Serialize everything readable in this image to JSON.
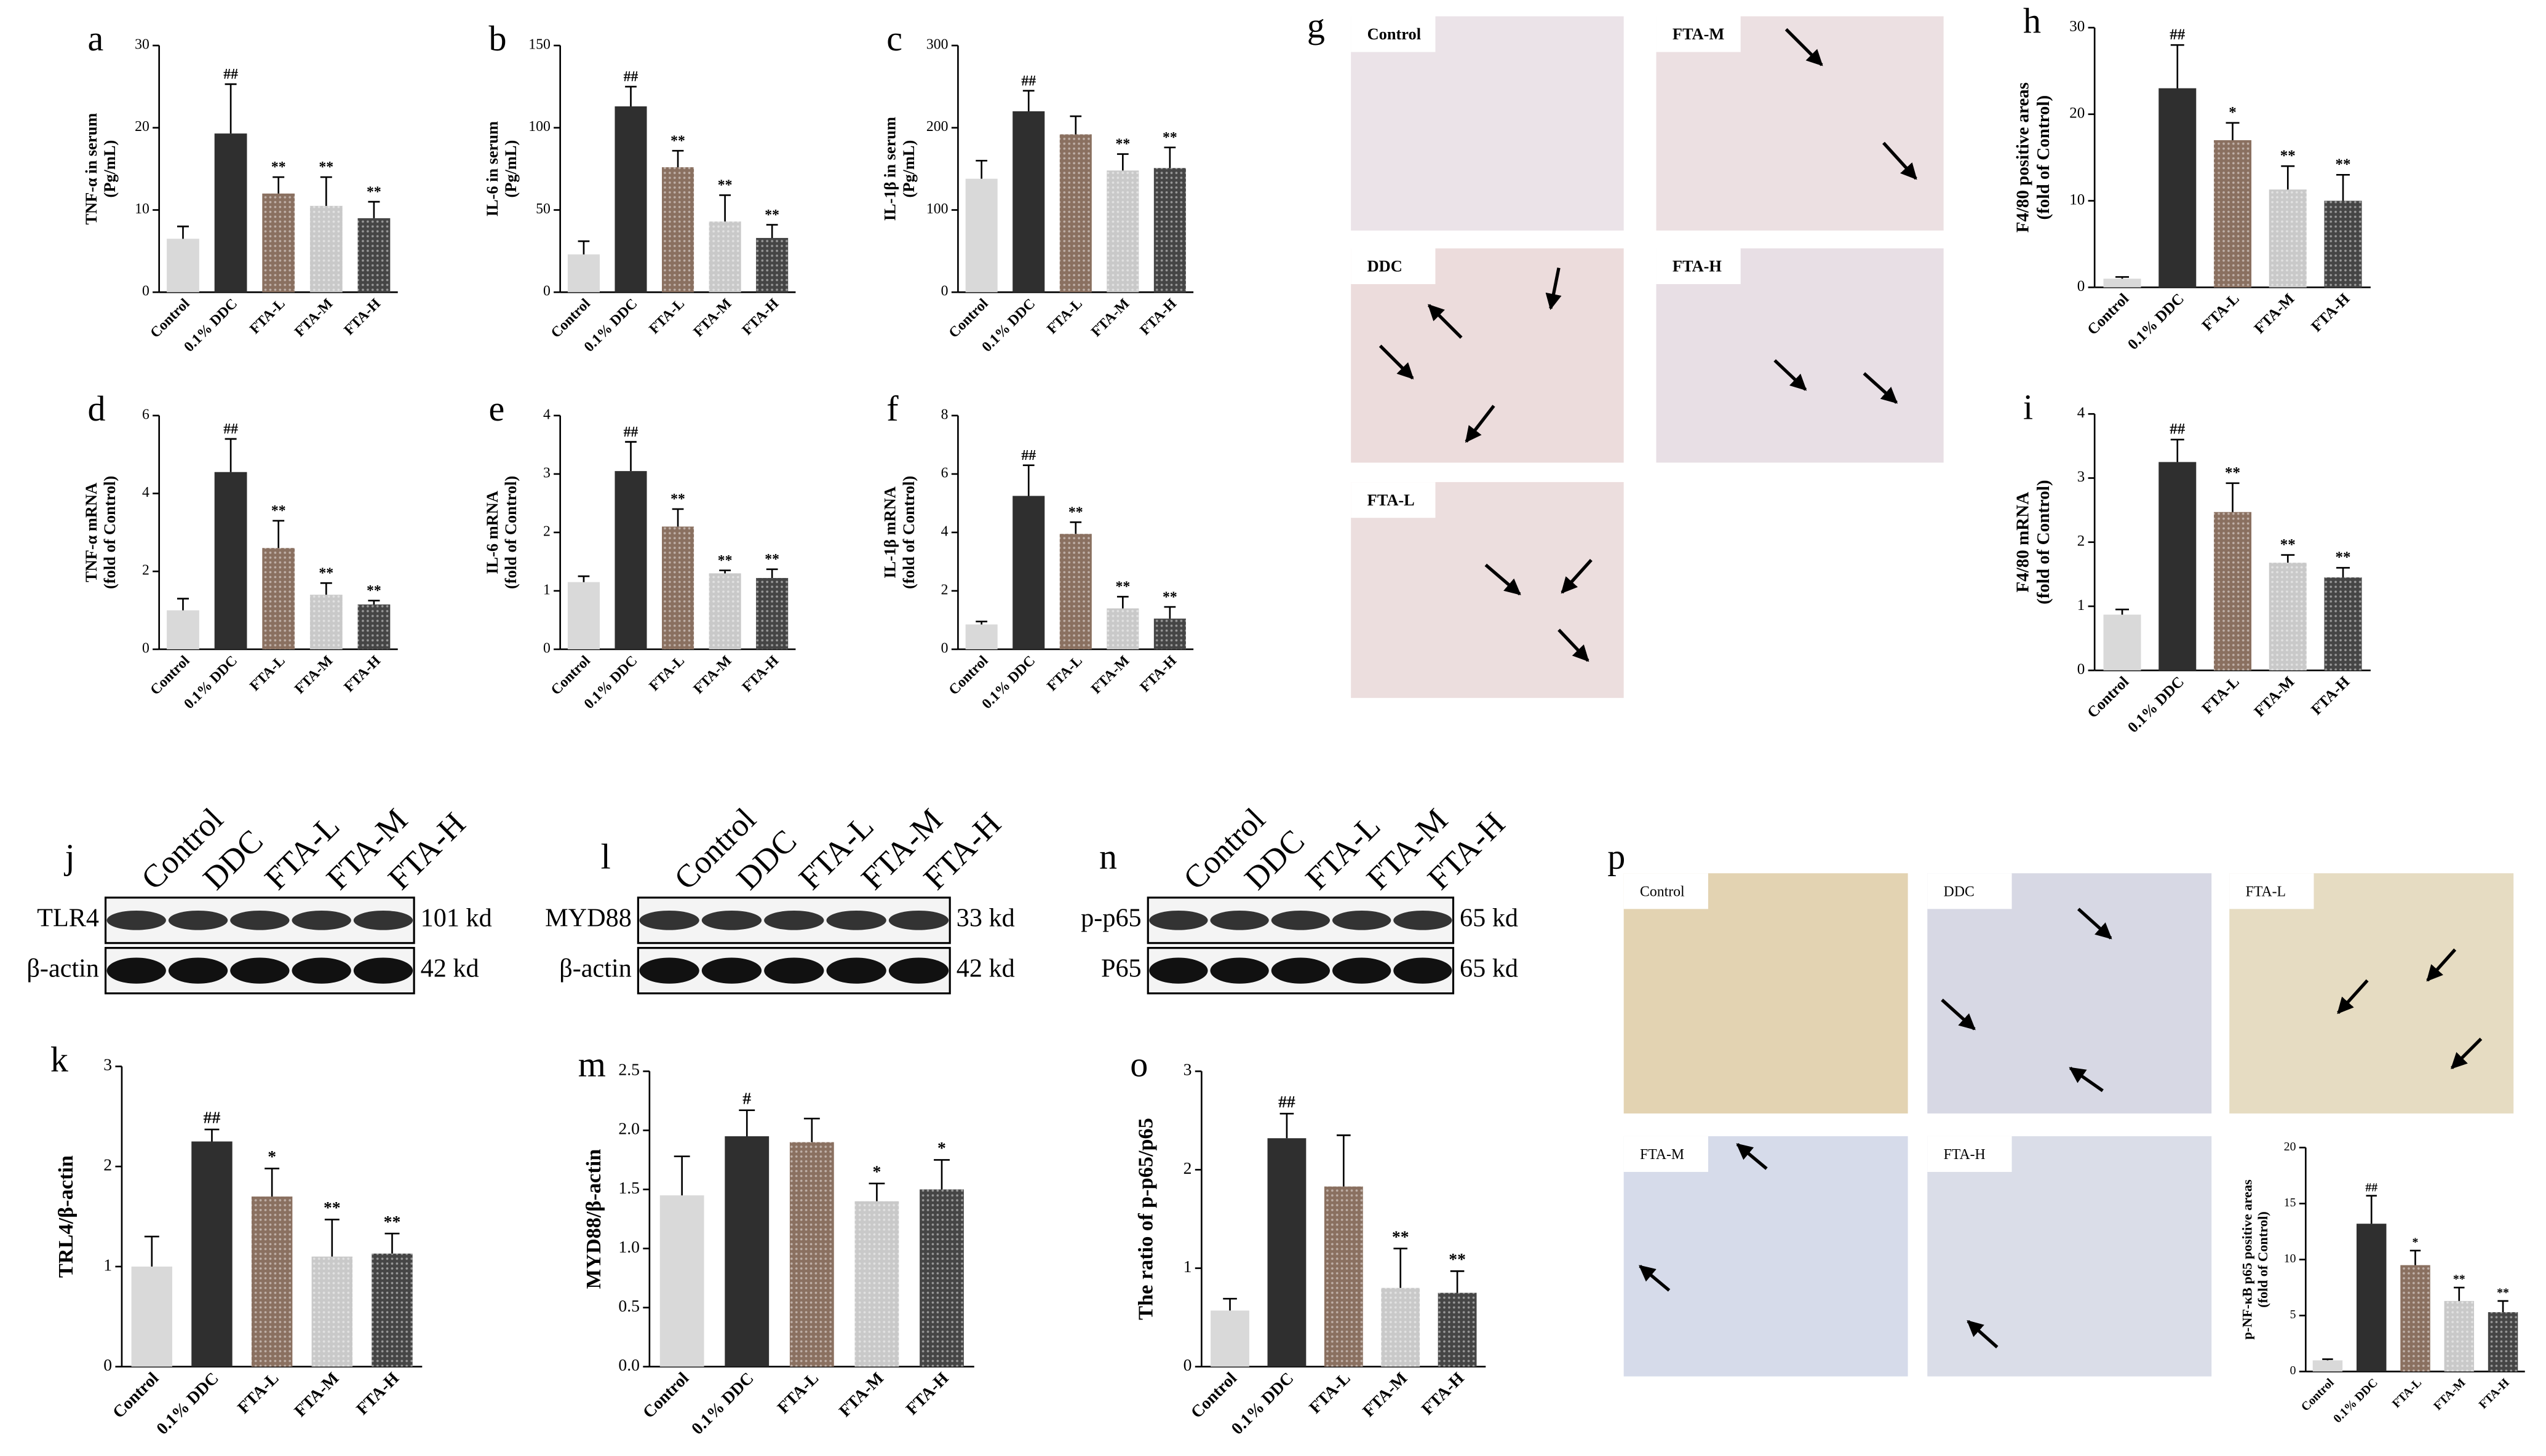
{
  "chart_data": [
    {
      "type": "bar",
      "panel": "a",
      "ylabel": [
        "TNF-α in serum",
        "(Pg/mL)"
      ],
      "categories": [
        "Control",
        "0.1% DDC",
        "FTA-L",
        "FTA-M",
        "FTA-H"
      ],
      "values": [
        6.5,
        19.3,
        12,
        10.5,
        9
      ],
      "errors": [
        1.5,
        6,
        2,
        3.5,
        2
      ],
      "annotations": [
        null,
        "##",
        "**",
        "**",
        "**"
      ],
      "ylim": [
        0,
        30
      ],
      "yticks": [
        0,
        10,
        20,
        30
      ]
    },
    {
      "type": "bar",
      "panel": "b",
      "ylabel": [
        "IL-6 in serum",
        "(Pg/mL)"
      ],
      "categories": [
        "Control",
        "0.1% DDC",
        "FTA-L",
        "FTA-M",
        "FTA-H"
      ],
      "values": [
        23,
        113,
        76,
        43,
        33
      ],
      "errors": [
        8,
        12,
        10,
        16,
        8
      ],
      "annotations": [
        null,
        "##",
        "**",
        "**",
        "**"
      ],
      "ylim": [
        0,
        150
      ],
      "yticks": [
        0,
        50,
        100,
        150
      ]
    },
    {
      "type": "bar",
      "panel": "c",
      "ylabel": [
        "IL-1β in serum",
        "(Pg/mL)"
      ],
      "categories": [
        "Control",
        "0.1% DDC",
        "FTA-L",
        "FTA-M",
        "FTA-H"
      ],
      "values": [
        138,
        220,
        192,
        148,
        151
      ],
      "errors": [
        22,
        25,
        22,
        20,
        25
      ],
      "annotations": [
        null,
        "##",
        null,
        "**",
        "**"
      ],
      "ylim": [
        0,
        300
      ],
      "yticks": [
        0,
        100,
        200,
        300
      ]
    },
    {
      "type": "bar",
      "panel": "h",
      "ylabel": [
        "F4/80 positive areas",
        "(fold of Control)"
      ],
      "categories": [
        "Control",
        "0.1% DDC",
        "FTA-L",
        "FTA-M",
        "FTA-H"
      ],
      "values": [
        1,
        23,
        17,
        11.3,
        10
      ],
      "errors": [
        0.2,
        5,
        2,
        2.7,
        3
      ],
      "annotations": [
        null,
        "##",
        "*",
        "**",
        "**"
      ],
      "ylim": [
        0,
        30
      ],
      "yticks": [
        0,
        10,
        20,
        30
      ]
    },
    {
      "type": "bar",
      "panel": "d",
      "ylabel": [
        "TNF-α mRNA",
        "(fold of Control)"
      ],
      "categories": [
        "Control",
        "0.1% DDC",
        "FTA-L",
        "FTA-M",
        "FTA-H"
      ],
      "values": [
        1.0,
        4.55,
        2.6,
        1.4,
        1.15
      ],
      "errors": [
        0.3,
        0.85,
        0.7,
        0.3,
        0.1
      ],
      "annotations": [
        null,
        "##",
        "**",
        "**",
        "**"
      ],
      "ylim": [
        0,
        6
      ],
      "yticks": [
        0,
        2,
        4,
        6
      ]
    },
    {
      "type": "bar",
      "panel": "e",
      "ylabel": [
        "IL-6 mRNA",
        "(fold of Control)"
      ],
      "categories": [
        "Control",
        "0.1% DDC",
        "FTA-L",
        "FTA-M",
        "FTA-H"
      ],
      "values": [
        1.15,
        3.05,
        2.1,
        1.3,
        1.22
      ],
      "errors": [
        0.1,
        0.5,
        0.3,
        0.05,
        0.15
      ],
      "annotations": [
        null,
        "##",
        "**",
        "**",
        "**"
      ],
      "ylim": [
        0,
        4
      ],
      "yticks": [
        0,
        1,
        2,
        3,
        4
      ]
    },
    {
      "type": "bar",
      "panel": "f",
      "ylabel": [
        "IL-1β mRNA",
        "(fold of Control)"
      ],
      "categories": [
        "Control",
        "0.1% DDC",
        "FTA-L",
        "FTA-M",
        "FTA-H"
      ],
      "values": [
        0.85,
        5.25,
        3.95,
        1.4,
        1.05
      ],
      "errors": [
        0.1,
        1.05,
        0.4,
        0.4,
        0.4
      ],
      "annotations": [
        null,
        "##",
        "**",
        "**",
        "**"
      ],
      "ylim": [
        0,
        8
      ],
      "yticks": [
        0,
        2,
        4,
        6,
        8
      ]
    },
    {
      "type": "bar",
      "panel": "i",
      "ylabel": [
        "F4/80 mRNA",
        "(fold of Control)"
      ],
      "categories": [
        "Control",
        "0.1% DDC",
        "FTA-L",
        "FTA-M",
        "FTA-H"
      ],
      "values": [
        0.87,
        3.25,
        2.47,
        1.68,
        1.45
      ],
      "errors": [
        0.08,
        0.35,
        0.45,
        0.12,
        0.15
      ],
      "annotations": [
        null,
        "##",
        "**",
        "**",
        "**"
      ],
      "ylim": [
        0,
        4
      ],
      "yticks": [
        0,
        1,
        2,
        3,
        4
      ]
    },
    {
      "type": "bar",
      "panel": "k",
      "ylabel": [
        "TRL4/β-actin"
      ],
      "categories": [
        "Control",
        "0.1% DDC",
        "FTA-L",
        "FTA-M",
        "FTA-H"
      ],
      "values": [
        1.0,
        2.25,
        1.7,
        1.1,
        1.13
      ],
      "errors": [
        0.3,
        0.12,
        0.28,
        0.37,
        0.2
      ],
      "annotations": [
        null,
        "##",
        "*",
        "**",
        "**"
      ],
      "ylim": [
        0,
        3
      ],
      "yticks": [
        0,
        1,
        2,
        3
      ]
    },
    {
      "type": "bar",
      "panel": "m",
      "ylabel": [
        "MYD88/β-actin"
      ],
      "categories": [
        "Control",
        "0.1% DDC",
        "FTA-L",
        "FTA-M",
        "FTA-H"
      ],
      "values": [
        1.45,
        1.95,
        1.9,
        1.4,
        1.5
      ],
      "errors": [
        0.33,
        0.22,
        0.2,
        0.15,
        0.25
      ],
      "annotations": [
        null,
        "#",
        null,
        "*",
        "*"
      ],
      "ylim": [
        0,
        2.5
      ],
      "yticks": [
        {
          "value": 0,
          "label": "0.0"
        },
        0.5,
        {
          "value": 1,
          "label": "1.0"
        },
        1.5,
        {
          "value": 2,
          "label": "2.0"
        },
        2.5
      ]
    },
    {
      "type": "bar",
      "panel": "o",
      "ylabel": [
        "The ratio of p-p65/p65"
      ],
      "categories": [
        "Control",
        "0.1% DDC",
        "FTA-L",
        "FTA-M",
        "FTA-H"
      ],
      "values": [
        0.57,
        2.32,
        1.83,
        0.8,
        0.75
      ],
      "errors": [
        0.12,
        0.25,
        0.52,
        0.4,
        0.22
      ],
      "annotations": [
        null,
        "##",
        null,
        "**",
        "**"
      ],
      "ylim": [
        0,
        3
      ],
      "yticks": [
        0,
        1,
        2,
        3
      ]
    },
    {
      "type": "bar",
      "ylabel": [
        "p-NF-κB p65 positive areas",
        "(fold of Control)"
      ],
      "categories": [
        "Control",
        "0.1% DDC",
        "FTA-L",
        "FTA-M",
        "FTA-H"
      ],
      "values": [
        1,
        13.2,
        9.5,
        6.3,
        5.3
      ],
      "errors": [
        0.1,
        2.5,
        1.3,
        1.2,
        1
      ],
      "annotations": [
        null,
        "##",
        "*",
        "**",
        "**"
      ],
      "ylim": [
        0,
        20
      ],
      "yticks": [
        0,
        5,
        10,
        15,
        20
      ]
    }
  ],
  "group_colors": [
    "#d9d9d9",
    "#2f2f2f",
    "#8a7060",
    "#c9c9c9",
    "#454545"
  ],
  "group_patterned": [
    false,
    false,
    true,
    true,
    true
  ],
  "micrographs": [
    {
      "panel": "g",
      "images": [
        "Control",
        "FTA-M",
        "DDC",
        "FTA-H",
        "FTA-L"
      ]
    },
    {
      "panel": "p",
      "images": [
        "Control",
        "DDC",
        "FTA-L",
        "FTA-M",
        "FTA-H"
      ]
    }
  ],
  "blots": [
    {
      "panel": "j",
      "lanes": [
        "Control",
        "DDC",
        "FTA-L",
        "FTA-M",
        "FTA-H"
      ],
      "bands": [
        {
          "name": "TLR4",
          "size": "101 kd"
        },
        {
          "name": "β-actin",
          "size": "42 kd"
        }
      ]
    },
    {
      "panel": "l",
      "lanes": [
        "Control",
        "DDC",
        "FTA-L",
        "FTA-M",
        "FTA-H"
      ],
      "bands": [
        {
          "name": "MYD88",
          "size": "33 kd"
        },
        {
          "name": "β-actin",
          "size": "42 kd"
        }
      ]
    },
    {
      "panel": "n",
      "lanes": [
        "Control",
        "DDC",
        "FTA-L",
        "FTA-M",
        "FTA-H"
      ],
      "bands": [
        {
          "name": "p-p65",
          "size": "65 kd"
        },
        {
          "name": "P65",
          "size": "65 kd"
        }
      ]
    }
  ]
}
